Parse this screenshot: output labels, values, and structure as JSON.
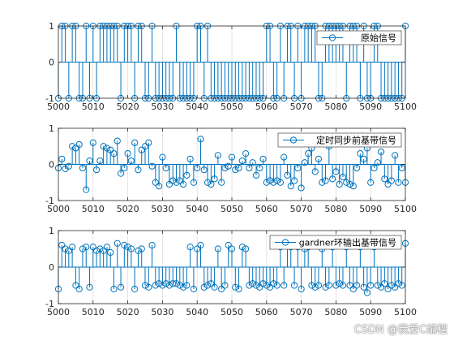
{
  "watermark": "CSDN @我爱C编程",
  "colors": {
    "stem": "#0072BD",
    "axis": "#262626",
    "grid": "#E0E0E0"
  },
  "chart_data": [
    {
      "type": "stem",
      "legend": "原始信号",
      "legend_position": "top-right",
      "xlim": [
        5000,
        5100
      ],
      "ylim": [
        -1,
        1
      ],
      "xticks": [
        5000,
        5010,
        5020,
        5030,
        5040,
        5050,
        5060,
        5070,
        5080,
        5090,
        5100
      ],
      "yticks": [
        -1,
        0,
        1
      ],
      "grid": true,
      "x": [
        5000,
        5001,
        5002,
        5003,
        5004,
        5005,
        5006,
        5007,
        5008,
        5009,
        5010,
        5011,
        5012,
        5013,
        5014,
        5015,
        5016,
        5017,
        5018,
        5019,
        5020,
        5021,
        5022,
        5023,
        5024,
        5025,
        5026,
        5027,
        5028,
        5029,
        5030,
        5031,
        5032,
        5033,
        5034,
        5035,
        5036,
        5037,
        5038,
        5039,
        5040,
        5041,
        5042,
        5043,
        5044,
        5045,
        5046,
        5047,
        5048,
        5049,
        5050,
        5051,
        5052,
        5053,
        5054,
        5055,
        5056,
        5057,
        5058,
        5059,
        5060,
        5061,
        5062,
        5063,
        5064,
        5065,
        5066,
        5067,
        5068,
        5069,
        5070,
        5071,
        5072,
        5073,
        5074,
        5075,
        5076,
        5077,
        5078,
        5079,
        5080,
        5081,
        5082,
        5083,
        5084,
        5085,
        5086,
        5087,
        5088,
        5089,
        5090,
        5091,
        5092,
        5093,
        5094,
        5095,
        5096,
        5097,
        5098,
        5099,
        5100
      ],
      "values": [
        -1,
        1,
        1,
        -1,
        1,
        1,
        -1,
        -1,
        1,
        -1,
        1,
        -1,
        1,
        1,
        1,
        1,
        1,
        1,
        -1,
        1,
        1,
        1,
        -1,
        1,
        1,
        -1,
        -1,
        1,
        -1,
        -1,
        -1,
        -1,
        -1,
        -1,
        1,
        -1,
        -1,
        -1,
        -1,
        -1,
        1,
        1,
        -1,
        1,
        -1,
        -1,
        -1,
        -1,
        -1,
        -1,
        -1,
        -1,
        -1,
        -1,
        -1,
        -1,
        -1,
        -1,
        -1,
        -1,
        1,
        1,
        -1,
        -1,
        1,
        -1,
        1,
        1,
        -1,
        1,
        -1,
        1,
        1,
        1,
        1,
        -1,
        -1,
        1,
        1,
        1,
        1,
        1,
        1,
        -1,
        1,
        1,
        1,
        -1,
        1,
        -1,
        -1,
        1,
        1,
        -1,
        -1,
        -1,
        -1,
        -1,
        -1,
        -1,
        1
      ]
    },
    {
      "type": "stem",
      "legend": "定时同步前基带信号",
      "legend_position": "top-right",
      "xlim": [
        5000,
        5100
      ],
      "ylim": [
        -1,
        1
      ],
      "xticks": [
        5000,
        5010,
        5020,
        5030,
        5040,
        5050,
        5060,
        5070,
        5080,
        5090,
        5100
      ],
      "yticks": [
        -1,
        0,
        1
      ],
      "grid": true,
      "x": [
        5000,
        5001,
        5002,
        5003,
        5004,
        5005,
        5006,
        5007,
        5008,
        5009,
        5010,
        5011,
        5012,
        5013,
        5014,
        5015,
        5016,
        5017,
        5018,
        5019,
        5020,
        5021,
        5022,
        5023,
        5024,
        5025,
        5026,
        5027,
        5028,
        5029,
        5030,
        5031,
        5032,
        5033,
        5034,
        5035,
        5036,
        5037,
        5038,
        5039,
        5040,
        5041,
        5042,
        5043,
        5044,
        5045,
        5046,
        5047,
        5048,
        5049,
        5050,
        5051,
        5052,
        5053,
        5054,
        5055,
        5056,
        5057,
        5058,
        5059,
        5060,
        5061,
        5062,
        5063,
        5064,
        5065,
        5066,
        5067,
        5068,
        5069,
        5070,
        5071,
        5072,
        5073,
        5074,
        5075,
        5076,
        5077,
        5078,
        5079,
        5080,
        5081,
        5082,
        5083,
        5084,
        5085,
        5086,
        5087,
        5088,
        5089,
        5090,
        5091,
        5092,
        5093,
        5094,
        5095,
        5096,
        5097,
        5098,
        5099,
        5100
      ],
      "values": [
        -0.1,
        0.15,
        -0.12,
        -0.05,
        0.5,
        0.45,
        0.55,
        -0.1,
        -0.7,
        0.1,
        0.6,
        -0.15,
        0.1,
        0.5,
        0.45,
        0.4,
        0.3,
        0.65,
        -0.25,
        -0.1,
        0.3,
        0.1,
        0.6,
        -0.15,
        0.4,
        0.5,
        0.6,
        -0.05,
        -0.5,
        -0.6,
        0.2,
        -0.1,
        -0.55,
        -0.45,
        -0.5,
        -0.45,
        -0.55,
        -0.3,
        0.15,
        -0.5,
        -0.1,
        0.7,
        -0.15,
        -0.5,
        -0.55,
        -0.4,
        0.25,
        -0.5,
        -0.1,
        -0.05,
        0.2,
        -0.15,
        -0.1,
        0.1,
        0.3,
        -0.1,
        0.05,
        -0.3,
        -0.1,
        0.15,
        -0.5,
        -0.45,
        -0.5,
        -0.45,
        -0.5,
        0.2,
        -0.3,
        -0.6,
        -0.45,
        -0.1,
        -0.65,
        0.05,
        0.3,
        0.45,
        -0.2,
        0.15,
        -0.5,
        -0.45,
        0.5,
        -0.4,
        -0.2,
        -0.55,
        -0.35,
        -0.5,
        -0.55,
        -0.6,
        -0.1,
        0.3,
        0.15,
        0.45,
        -0.5,
        -0.1,
        0.05,
        0.35,
        -0.4,
        -0.55,
        -0.45,
        0.25,
        -0.5,
        -0.1,
        -0.5
      ]
    },
    {
      "type": "stem",
      "legend": "gardner环输出基带信号",
      "legend_position": "top-right",
      "xlim": [
        5000,
        5100
      ],
      "ylim": [
        -1,
        1
      ],
      "xticks": [
        5000,
        5010,
        5020,
        5030,
        5040,
        5050,
        5060,
        5070,
        5080,
        5090,
        5100
      ],
      "yticks": [
        -1,
        0,
        1
      ],
      "grid": true,
      "x": [
        5000,
        5001,
        5002,
        5003,
        5004,
        5005,
        5006,
        5007,
        5008,
        5009,
        5010,
        5011,
        5012,
        5013,
        5014,
        5015,
        5016,
        5017,
        5018,
        5019,
        5020,
        5021,
        5022,
        5023,
        5024,
        5025,
        5026,
        5027,
        5028,
        5029,
        5030,
        5031,
        5032,
        5033,
        5034,
        5035,
        5036,
        5037,
        5038,
        5039,
        5040,
        5041,
        5042,
        5043,
        5044,
        5045,
        5046,
        5047,
        5048,
        5049,
        5050,
        5051,
        5052,
        5053,
        5054,
        5055,
        5056,
        5057,
        5058,
        5059,
        5060,
        5061,
        5062,
        5063,
        5064,
        5065,
        5066,
        5067,
        5068,
        5069,
        5070,
        5071,
        5072,
        5073,
        5074,
        5075,
        5076,
        5077,
        5078,
        5079,
        5080,
        5081,
        5082,
        5083,
        5084,
        5085,
        5086,
        5087,
        5088,
        5089,
        5090,
        5091,
        5092,
        5093,
        5094,
        5095,
        5096,
        5097,
        5098,
        5099,
        5100
      ],
      "values": [
        -0.6,
        0.6,
        0.5,
        0.45,
        0.55,
        -0.5,
        -0.6,
        0.5,
        0.55,
        -0.55,
        0.55,
        0.45,
        0.5,
        0.45,
        0.55,
        0.4,
        -0.6,
        0.65,
        -0.55,
        0.6,
        0.55,
        0.5,
        -0.6,
        0.45,
        0.5,
        -0.5,
        -0.55,
        0.6,
        -0.5,
        -0.45,
        -0.5,
        -0.45,
        -0.5,
        -0.45,
        -0.45,
        -0.5,
        -0.55,
        -0.5,
        0.55,
        -0.6,
        0.5,
        0.6,
        -0.55,
        -0.5,
        -0.45,
        -0.55,
        0.5,
        -0.6,
        -0.5,
        0.6,
        0.5,
        -0.55,
        -0.6,
        0.55,
        0.5,
        -0.5,
        -0.45,
        -0.5,
        -0.55,
        -0.45,
        -0.5,
        -0.55,
        -0.45,
        -0.5,
        0.55,
        -0.5,
        0.6,
        0.55,
        -0.5,
        0.55,
        -0.6,
        0.5,
        0.55,
        -0.5,
        -0.55,
        -0.5,
        0.5,
        -0.55,
        -0.5,
        0.55,
        -0.5,
        -0.45,
        -0.5,
        0.55,
        -0.5,
        -0.6,
        -0.5,
        0.55,
        -0.55,
        -0.7,
        -0.5,
        0.55,
        -0.5,
        -0.55,
        -0.45,
        -0.6,
        -0.5,
        -0.55,
        -0.45,
        -0.5,
        0.65
      ]
    }
  ]
}
